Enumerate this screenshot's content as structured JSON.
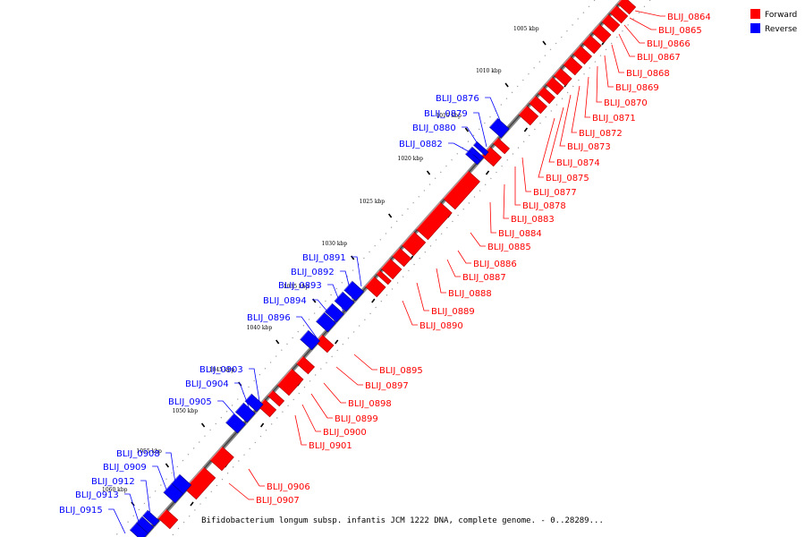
{
  "legend": [
    {
      "label": "Forward",
      "color": "#ff0000"
    },
    {
      "label": "Reverse",
      "color": "#0000ff"
    }
  ],
  "caption": "Bifidobacterium longum subsp. infantis JCM 1222 DNA, complete genome. - 0..28289...",
  "ticks": [
    "1005 kbp",
    "1010 kbp",
    "1015 kbp",
    "1020 kbp",
    "1025 kbp",
    "1030 kbp",
    "1035 kbp",
    "1040 kbp",
    "1045 kbp",
    "1050 kbp",
    "1055 kbp",
    "1060 kbp"
  ],
  "forward_labels": [
    "BLIJ_0864",
    "BLIJ_0865",
    "BLIJ_0866",
    "BLIJ_0867",
    "BLIJ_0868",
    "BLIJ_0869",
    "BLIJ_0870",
    "BLIJ_0871",
    "BLIJ_0872",
    "BLIJ_0873",
    "BLIJ_0874",
    "BLIJ_0875",
    "BLIJ_0877",
    "BLIJ_0878",
    "BLIJ_0883",
    "BLIJ_0884",
    "BLIJ_0885",
    "BLIJ_0886",
    "BLIJ_0887",
    "BLIJ_0888",
    "BLIJ_0889",
    "BLIJ_0890",
    "BLIJ_0895",
    "BLIJ_0897",
    "BLIJ_0898",
    "BLIJ_0899",
    "BLIJ_0900",
    "BLIJ_0901",
    "BLIJ_0906",
    "BLIJ_0907"
  ],
  "reverse_labels": [
    "BLIJ_0876",
    "BLIJ_0879",
    "BLIJ_0880",
    "BLIJ_0882",
    "BLIJ_0891",
    "BLIJ_0892",
    "BLIJ_0893",
    "BLIJ_0894",
    "BLIJ_0896",
    "BLIJ_0903",
    "BLIJ_0904",
    "BLIJ_0905",
    "BLIJ_0908",
    "BLIJ_0909",
    "BLIJ_0912",
    "BLIJ_0913",
    "BLIJ_0915"
  ]
}
